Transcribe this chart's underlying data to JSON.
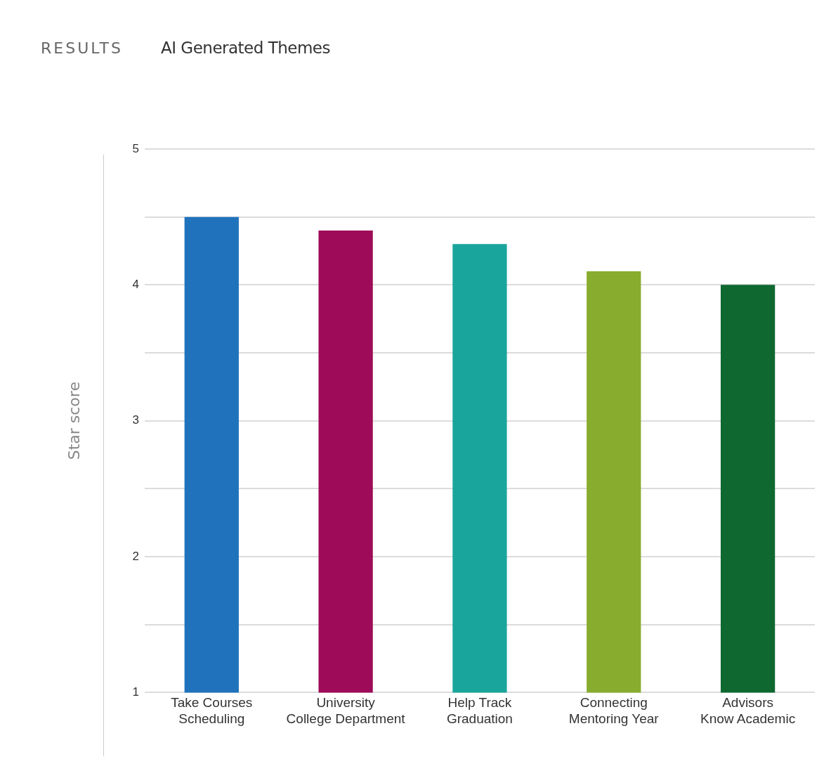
{
  "chart_data": {
    "type": "bar",
    "title": "AI Generated Themes",
    "annotations": [
      "RESULTS"
    ],
    "ylabel": "Star score",
    "categories": [
      "Take Courses Scheduling",
      "University College Department",
      "Help Track Graduation",
      "Connecting Mentoring Year",
      "Advisors Know Academic"
    ],
    "values": [
      4.5,
      4.4,
      4.3,
      4.1,
      4.0
    ],
    "colors": [
      "#1f72bb",
      "#9e0b58",
      "#1aa59c",
      "#88ac2e",
      "#0e6830"
    ],
    "ylim": [
      1,
      5
    ],
    "yticks": [
      1,
      {
        "value": 1.5,
        "label": null
      },
      2,
      {
        "value": 2.5,
        "label": null
      },
      3,
      {
        "value": 3.5,
        "label": null
      },
      4,
      {
        "value": 4.5,
        "label": null
      },
      5
    ],
    "grid": "y",
    "legend": false
  }
}
